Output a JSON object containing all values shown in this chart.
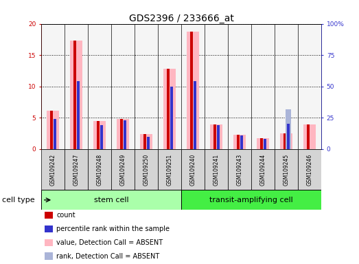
{
  "title": "GDS2396 / 233666_at",
  "samples": [
    "GSM109242",
    "GSM109247",
    "GSM109248",
    "GSM109249",
    "GSM109250",
    "GSM109251",
    "GSM109240",
    "GSM109241",
    "GSM109243",
    "GSM109244",
    "GSM109245",
    "GSM109246"
  ],
  "value_absent": [
    6.1,
    17.3,
    4.5,
    4.8,
    2.4,
    12.8,
    18.8,
    3.9,
    2.3,
    1.7,
    2.5,
    3.9
  ],
  "count": [
    6.1,
    17.3,
    4.5,
    4.8,
    2.4,
    12.8,
    18.8,
    3.9,
    2.3,
    1.7,
    2.5,
    3.9
  ],
  "percentile_rank": [
    24,
    54,
    19,
    23,
    10,
    50,
    54,
    19,
    11,
    8,
    20,
    0
  ],
  "rank_absent": [
    0,
    0,
    0,
    0,
    0,
    0,
    0,
    0,
    0,
    0,
    32,
    0
  ],
  "is_absent_value": [
    true,
    true,
    true,
    true,
    true,
    true,
    true,
    true,
    true,
    true,
    true,
    true
  ],
  "is_absent_rank": [
    false,
    false,
    false,
    false,
    false,
    false,
    false,
    false,
    false,
    false,
    true,
    false
  ],
  "groups": [
    {
      "label": "stem cell",
      "start": 0,
      "end": 6,
      "color": "#aaffaa"
    },
    {
      "label": "transit-amplifying cell",
      "start": 6,
      "end": 12,
      "color": "#44ee44"
    }
  ],
  "ylim_left": [
    0,
    20
  ],
  "ylim_right": [
    0,
    100
  ],
  "yticks_left": [
    0,
    5,
    10,
    15,
    20
  ],
  "yticks_right": [
    0,
    25,
    50,
    75,
    100
  ],
  "yticklabels_left": [
    "0",
    "5",
    "10",
    "15",
    "20"
  ],
  "yticklabels_right": [
    "0",
    "25",
    "50",
    "75",
    "100%"
  ],
  "color_count": "#cc0000",
  "color_percentile": "#3333cc",
  "color_value_absent": "#ffb6c1",
  "color_rank_absent": "#aab4d8",
  "legend_items": [
    {
      "label": "count",
      "color": "#cc0000"
    },
    {
      "label": "percentile rank within the sample",
      "color": "#3333cc"
    },
    {
      "label": "value, Detection Call = ABSENT",
      "color": "#ffb6c1"
    },
    {
      "label": "rank, Detection Call = ABSENT",
      "color": "#aab4d8"
    }
  ],
  "cell_type_label": "cell type",
  "background_color": "#ffffff",
  "plot_bg": "#f5f5f5",
  "title_fontsize": 10,
  "tick_fontsize": 6.5,
  "label_fontsize": 8,
  "legend_fontsize": 7
}
